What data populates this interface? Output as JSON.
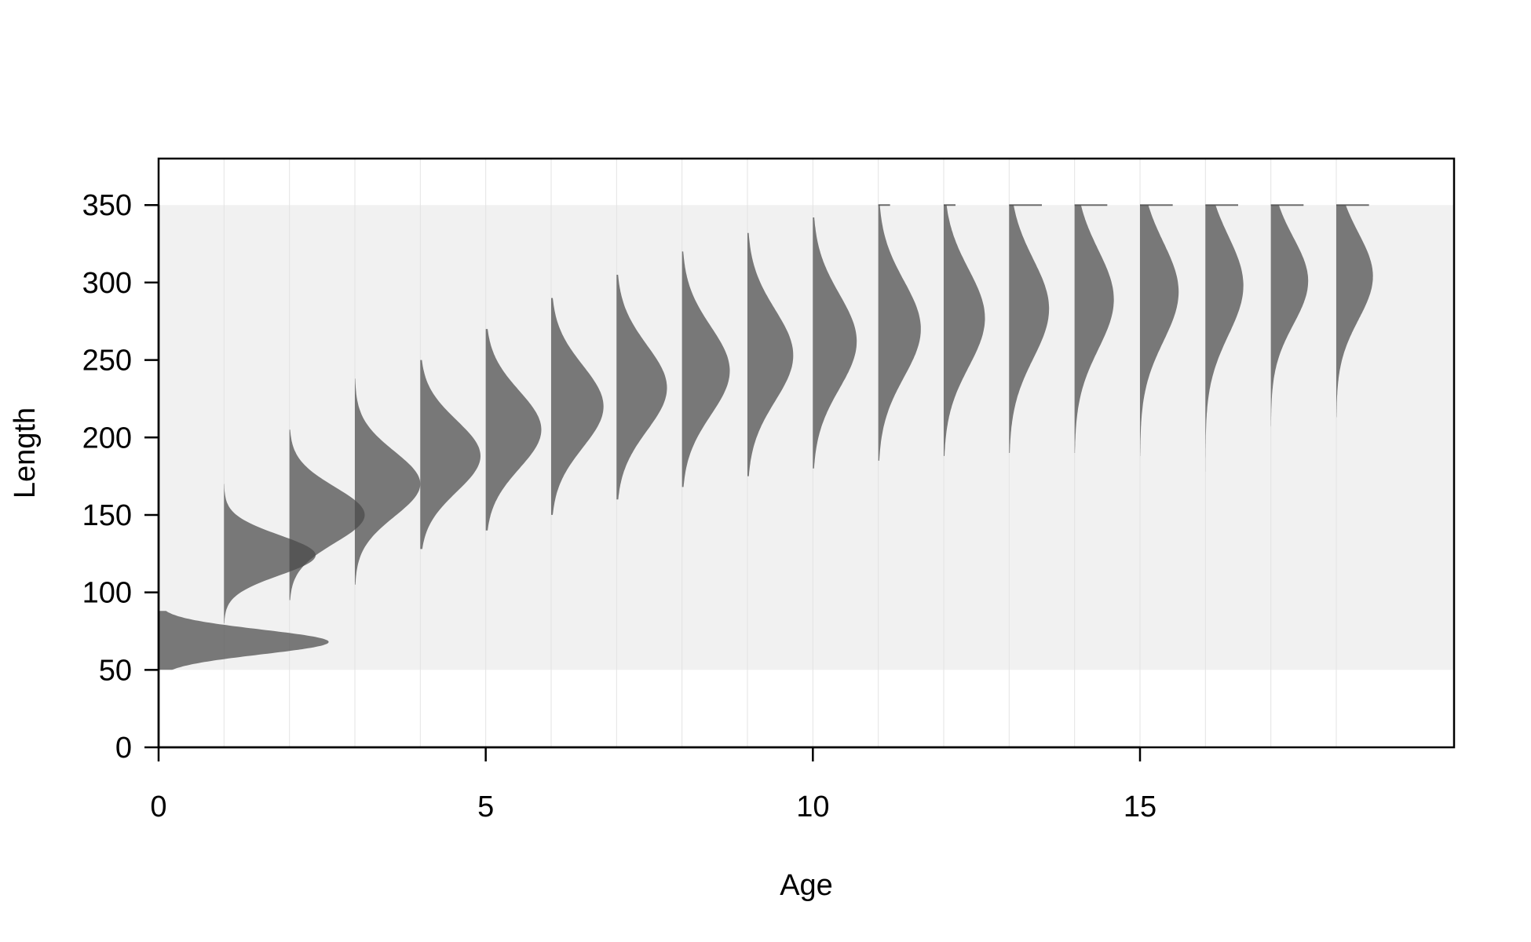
{
  "chart_data": {
    "type": "area",
    "title": "",
    "xlabel": "Age",
    "ylabel": "Length",
    "xlim": [
      0,
      19.8
    ],
    "ylim": [
      0,
      380
    ],
    "x_ticks": [
      0,
      5,
      10,
      15
    ],
    "y_ticks": [
      0,
      50,
      100,
      150,
      200,
      250,
      300,
      350
    ],
    "x_tick_labels": [
      "0",
      "5",
      "10",
      "15"
    ],
    "y_tick_labels": [
      "0",
      "50",
      "100",
      "150",
      "200",
      "250",
      "300",
      "350"
    ],
    "grid": true,
    "length_band": [
      50,
      350
    ],
    "series": [
      {
        "age": 0,
        "mean": 68,
        "sd": 8,
        "peak_width": 2.6,
        "min": 50,
        "max": 88
      },
      {
        "age": 1,
        "mean": 124,
        "sd": 13,
        "peak_width": 1.4,
        "min": 80,
        "max": 170
      },
      {
        "age": 2,
        "mean": 150,
        "sd": 18,
        "peak_width": 1.15,
        "min": 95,
        "max": 205
      },
      {
        "age": 3,
        "mean": 170,
        "sd": 21,
        "peak_width": 1.0,
        "min": 105,
        "max": 238
      },
      {
        "age": 4,
        "mean": 188,
        "sd": 23,
        "peak_width": 0.92,
        "min": 128,
        "max": 250
      },
      {
        "age": 5,
        "mean": 205,
        "sd": 25,
        "peak_width": 0.85,
        "min": 140,
        "max": 270
      },
      {
        "age": 6,
        "mean": 220,
        "sd": 26.5,
        "peak_width": 0.8,
        "min": 150,
        "max": 290
      },
      {
        "age": 7,
        "mean": 232,
        "sd": 27.5,
        "peak_width": 0.77,
        "min": 160,
        "max": 305
      },
      {
        "age": 8,
        "mean": 243,
        "sd": 28.5,
        "peak_width": 0.73,
        "min": 168,
        "max": 320
      },
      {
        "age": 9,
        "mean": 253,
        "sd": 29.5,
        "peak_width": 0.7,
        "min": 175,
        "max": 332
      },
      {
        "age": 10,
        "mean": 262,
        "sd": 30.5,
        "peak_width": 0.67,
        "min": 180,
        "max": 342
      },
      {
        "age": 11,
        "mean": 270,
        "sd": 31,
        "peak_width": 0.65,
        "min": 185,
        "max": 350
      },
      {
        "age": 12,
        "mean": 277,
        "sd": 31.5,
        "peak_width": 0.63,
        "min": 188,
        "max": 350
      },
      {
        "age": 13,
        "mean": 283,
        "sd": 32,
        "peak_width": 0.61,
        "min": 190,
        "max": 350
      },
      {
        "age": 14,
        "mean": 289,
        "sd": 32,
        "peak_width": 0.6,
        "min": 190,
        "max": 350
      },
      {
        "age": 15,
        "mean": 294,
        "sd": 32,
        "peak_width": 0.59,
        "min": 188,
        "max": 350
      },
      {
        "age": 16,
        "mean": 298,
        "sd": 32,
        "peak_width": 0.58,
        "min": 178,
        "max": 350
      },
      {
        "age": 17,
        "mean": 301,
        "sd": 28,
        "peak_width": 0.57,
        "min": 207,
        "max": 350
      },
      {
        "age": 18,
        "mean": 304,
        "sd": 28,
        "peak_width": 0.56,
        "min": 213,
        "max": 350
      }
    ]
  },
  "colors": {
    "background": "#ffffff",
    "band": "#f1f1f1",
    "grid": "#e3e3e3",
    "fill": "#4a4a4a",
    "axis": "#000000"
  }
}
